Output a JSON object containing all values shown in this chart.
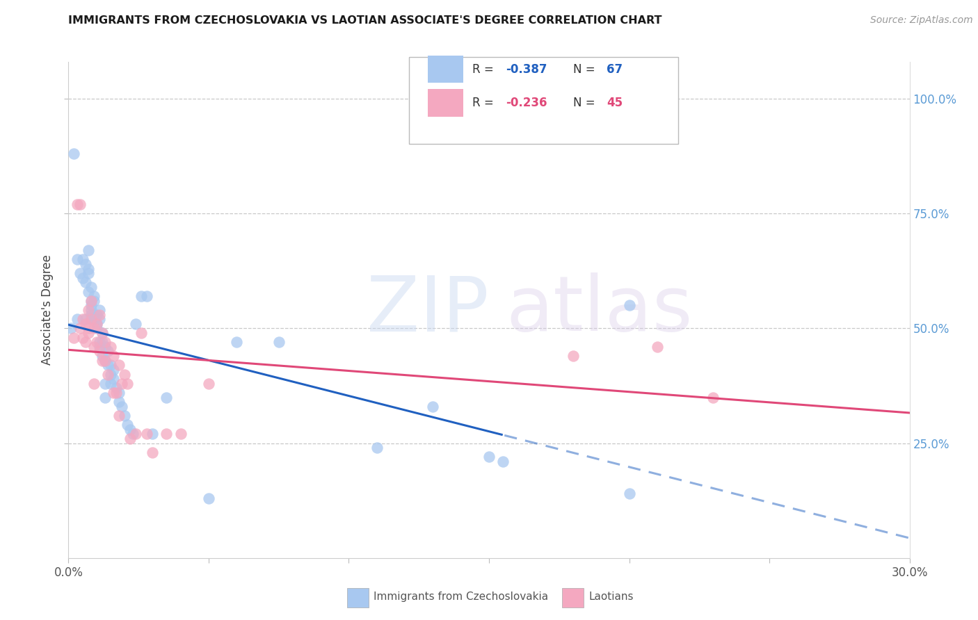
{
  "title": "IMMIGRANTS FROM CZECHOSLOVAKIA VS LAOTIAN ASSOCIATE'S DEGREE CORRELATION CHART",
  "source": "Source: ZipAtlas.com",
  "ylabel": "Associate's Degree",
  "right_ytick_labels": [
    "100.0%",
    "75.0%",
    "50.0%",
    "25.0%"
  ],
  "right_ytick_values": [
    1.0,
    0.75,
    0.5,
    0.25
  ],
  "xlim": [
    0.0,
    0.3
  ],
  "ylim": [
    0.0,
    1.08
  ],
  "xtick_values": [
    0.0,
    0.05,
    0.1,
    0.15,
    0.2,
    0.25,
    0.3
  ],
  "xtick_labels": [
    "0.0%",
    "",
    "",
    "",
    "",
    "",
    "30.0%"
  ],
  "blue_label": "Immigrants from Czechoslovakia",
  "pink_label": "Laotians",
  "blue_R": "-0.387",
  "blue_N": "67",
  "pink_R": "-0.236",
  "pink_N": "45",
  "blue_color": "#a8c8f0",
  "pink_color": "#f4a8c0",
  "blue_line_color": "#2060c0",
  "pink_line_color": "#e04878",
  "blue_x": [
    0.001,
    0.002,
    0.003,
    0.004,
    0.005,
    0.005,
    0.006,
    0.006,
    0.007,
    0.007,
    0.007,
    0.007,
    0.008,
    0.008,
    0.008,
    0.008,
    0.009,
    0.009,
    0.009,
    0.009,
    0.01,
    0.01,
    0.01,
    0.011,
    0.011,
    0.011,
    0.011,
    0.012,
    0.012,
    0.012,
    0.013,
    0.013,
    0.013,
    0.014,
    0.014,
    0.015,
    0.015,
    0.015,
    0.016,
    0.016,
    0.017,
    0.018,
    0.018,
    0.019,
    0.02,
    0.021,
    0.022,
    0.023,
    0.024,
    0.026,
    0.028,
    0.03,
    0.035,
    0.05,
    0.06,
    0.075,
    0.11,
    0.13,
    0.155,
    0.2,
    0.003,
    0.006,
    0.008,
    0.009,
    0.013,
    0.15,
    0.2
  ],
  "blue_y": [
    0.5,
    0.88,
    0.65,
    0.62,
    0.65,
    0.61,
    0.6,
    0.64,
    0.62,
    0.58,
    0.63,
    0.67,
    0.56,
    0.54,
    0.59,
    0.55,
    0.53,
    0.56,
    0.52,
    0.57,
    0.51,
    0.5,
    0.53,
    0.52,
    0.46,
    0.54,
    0.47,
    0.47,
    0.49,
    0.44,
    0.46,
    0.43,
    0.38,
    0.42,
    0.45,
    0.4,
    0.42,
    0.38,
    0.41,
    0.39,
    0.37,
    0.36,
    0.34,
    0.33,
    0.31,
    0.29,
    0.28,
    0.27,
    0.51,
    0.57,
    0.57,
    0.27,
    0.35,
    0.13,
    0.47,
    0.47,
    0.24,
    0.33,
    0.21,
    0.55,
    0.52,
    0.52,
    0.53,
    0.52,
    0.35,
    0.22,
    0.14
  ],
  "pink_x": [
    0.002,
    0.003,
    0.004,
    0.004,
    0.005,
    0.005,
    0.006,
    0.006,
    0.007,
    0.007,
    0.008,
    0.008,
    0.009,
    0.009,
    0.01,
    0.01,
    0.011,
    0.011,
    0.012,
    0.013,
    0.013,
    0.014,
    0.015,
    0.016,
    0.017,
    0.018,
    0.018,
    0.019,
    0.02,
    0.021,
    0.022,
    0.024,
    0.026,
    0.028,
    0.03,
    0.035,
    0.04,
    0.05,
    0.18,
    0.21,
    0.23,
    0.007,
    0.009,
    0.012,
    0.016
  ],
  "pink_y": [
    0.48,
    0.77,
    0.77,
    0.5,
    0.52,
    0.48,
    0.51,
    0.47,
    0.54,
    0.49,
    0.56,
    0.52,
    0.5,
    0.46,
    0.51,
    0.47,
    0.53,
    0.45,
    0.49,
    0.47,
    0.43,
    0.4,
    0.46,
    0.44,
    0.36,
    0.42,
    0.31,
    0.38,
    0.4,
    0.38,
    0.26,
    0.27,
    0.49,
    0.27,
    0.23,
    0.27,
    0.27,
    0.38,
    0.44,
    0.46,
    0.35,
    0.5,
    0.38,
    0.43,
    0.36
  ]
}
